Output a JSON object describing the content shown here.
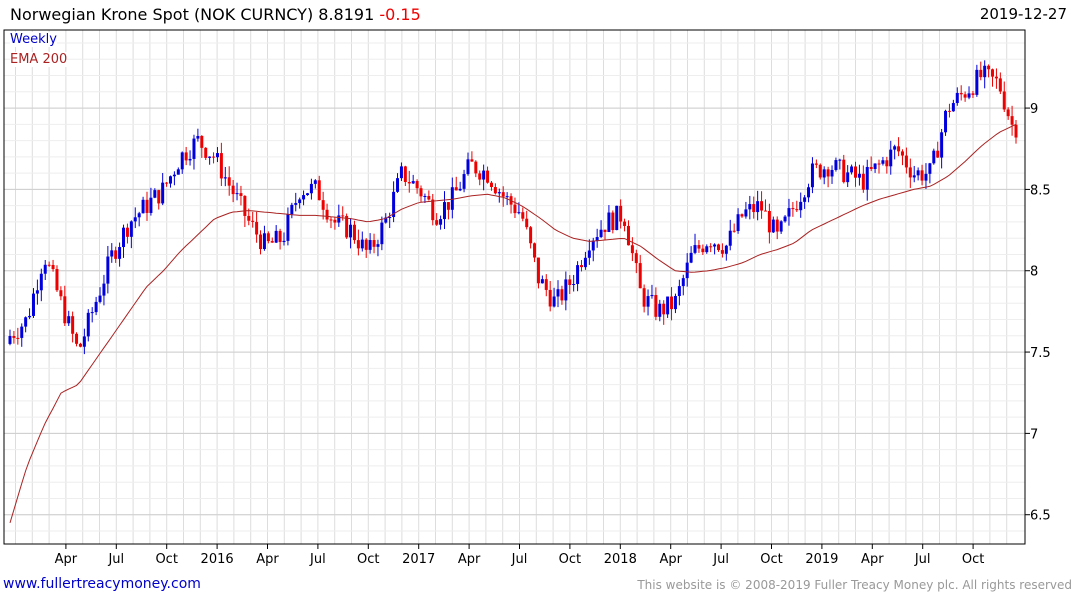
{
  "header": {
    "title": "Norwegian Krone Spot (NOK CURNCY) 8.8191",
    "change": "-0.15",
    "date": "2019-12-27"
  },
  "legend": {
    "weekly": "Weekly",
    "ema": "EMA 200"
  },
  "footer": {
    "site": "www.fullertreacymoney.com",
    "copyright": "This website is © 2008-2019 Fuller Treacy Money plc. All rights reserved"
  },
  "colors": {
    "up": "#0000dd",
    "down": "#ee0000",
    "ema": "#aa2222",
    "grid": "#dddddd"
  },
  "chart_data": {
    "type": "candlestick",
    "title": "Norwegian Krone Spot (NOK CURNCY)",
    "frequency": "weekly",
    "ylim": [
      6.32,
      9.48
    ],
    "yticks": [
      "9",
      "8.5",
      "8",
      "7.5",
      "7",
      "6.5"
    ],
    "ytick_values": [
      9,
      8.5,
      8,
      7.5,
      7,
      6.5
    ],
    "xticks": [
      "Apr",
      "Jul",
      "Oct",
      "2016",
      "Apr",
      "Jul",
      "Oct",
      "2017",
      "Apr",
      "Jul",
      "Oct",
      "2018",
      "Apr",
      "Jul",
      "Oct",
      "2019",
      "Apr",
      "Jul",
      "Oct"
    ],
    "xtick_months": [
      3,
      6,
      9,
      12,
      15,
      18,
      21,
      24,
      27,
      30,
      33,
      36,
      39,
      42,
      45,
      48,
      51,
      54,
      57
    ],
    "start": "2015-01",
    "monthly_close": [
      7.6,
      7.7,
      8.1,
      7.8,
      7.5,
      7.8,
      8.1,
      8.3,
      8.4,
      8.5,
      8.7,
      8.8,
      8.7,
      8.5,
      8.3,
      8.15,
      8.2,
      8.5,
      8.5,
      8.3,
      8.25,
      8.1,
      8.3,
      8.6,
      8.5,
      8.35,
      8.45,
      8.65,
      8.6,
      8.45,
      8.35,
      7.95,
      7.8,
      7.95,
      8.2,
      8.3,
      8.35,
      7.85,
      7.75,
      7.8,
      8.1,
      8.2,
      8.15,
      8.35,
      8.4,
      8.2,
      8.4,
      8.6,
      8.65,
      8.6,
      8.55,
      8.65,
      8.75,
      8.6,
      8.6,
      9.0,
      9.1,
      9.2,
      9.15,
      8.82
    ],
    "ema200_monthly": [
      6.45,
      6.8,
      7.05,
      7.25,
      7.3,
      7.45,
      7.6,
      7.75,
      7.9,
      8.0,
      8.12,
      8.22,
      8.32,
      8.36,
      8.37,
      8.36,
      8.35,
      8.34,
      8.34,
      8.33,
      8.32,
      8.3,
      8.32,
      8.38,
      8.42,
      8.43,
      8.44,
      8.46,
      8.47,
      8.45,
      8.4,
      8.33,
      8.25,
      8.2,
      8.18,
      8.19,
      8.2,
      8.15,
      8.07,
      8.0,
      7.99,
      8.0,
      8.02,
      8.05,
      8.1,
      8.13,
      8.17,
      8.25,
      8.3,
      8.35,
      8.4,
      8.44,
      8.47,
      8.5,
      8.52,
      8.58,
      8.67,
      8.77,
      8.85,
      8.9
    ],
    "last": 8.8191
  }
}
